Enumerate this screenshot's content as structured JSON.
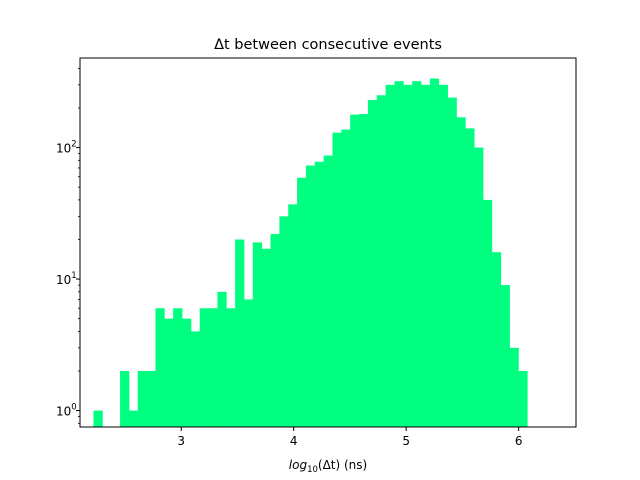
{
  "chart_data": {
    "type": "bar",
    "title": "Δt between consecutive events",
    "xlabel": "log10(Δt) (ns)",
    "ylabel": "",
    "yscale": "log",
    "xlim": [
      2.1,
      6.51
    ],
    "ylim": [
      0.75,
      480
    ],
    "grid": false,
    "color": "#00ff80",
    "xticks": [
      {
        "value": 3,
        "label": "3"
      },
      {
        "value": 4,
        "label": "4"
      },
      {
        "value": 5,
        "label": "5"
      },
      {
        "value": 6,
        "label": "6"
      }
    ],
    "yticks": [
      {
        "value": 1,
        "label": "10^0"
      },
      {
        "value": 10,
        "label": "10^1"
      },
      {
        "value": 100,
        "label": "10^2"
      }
    ],
    "bins": {
      "start": 2.22,
      "width": 0.0787,
      "counts": [
        1,
        0,
        0,
        2,
        1,
        2,
        2,
        6,
        5,
        6,
        5,
        4,
        6,
        6,
        8,
        6,
        20,
        7,
        19,
        17,
        22,
        30,
        37,
        59,
        73,
        78,
        87,
        130,
        137,
        178,
        180,
        230,
        250,
        300,
        320,
        300,
        320,
        300,
        335,
        300,
        240,
        170,
        140,
        100,
        40,
        16,
        9,
        3,
        2
      ]
    }
  }
}
